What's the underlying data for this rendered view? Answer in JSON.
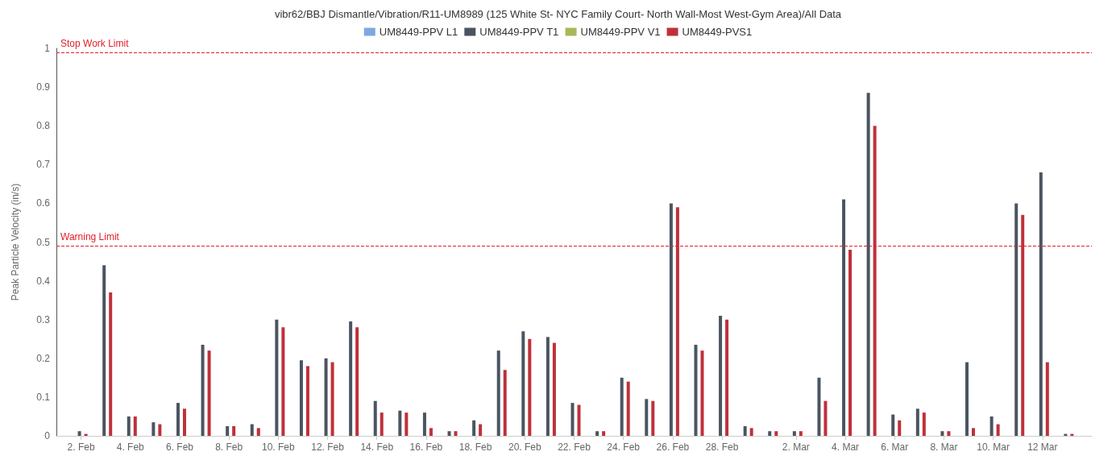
{
  "chart_data": {
    "type": "bar",
    "title": "vibr62/BBJ Dismantle/Vibration/R11-UM8989 (125 White St- NYC Family Court- North Wall-Most West-Gym Area)/All Data",
    "ylabel": "Peak Particle Velocity (in/s)",
    "x": [
      "--02-02",
      "--02-03",
      "--02-04",
      "--02-05",
      "--02-06",
      "--02-07",
      "--02-08",
      "--02-09",
      "--02-10",
      "--02-11",
      "--02-12",
      "--02-13",
      "--02-14",
      "--02-15",
      "--02-16",
      "--02-17",
      "--02-18",
      "--02-19",
      "--02-20",
      "--02-21",
      "--02-22",
      "--02-23",
      "--02-24",
      "--02-25",
      "--02-26",
      "--02-27",
      "--02-28",
      "--02-29",
      "--03-01",
      "--03-02",
      "--03-03",
      "--03-04",
      "--03-05",
      "--03-06",
      "--03-07",
      "--03-08",
      "--03-09",
      "--03-10",
      "--03-11",
      "--03-12",
      "--03-13"
    ],
    "series": [
      {
        "name": "UM8449-PPV L1",
        "color": "#7fa8e0",
        "values": [
          null,
          null,
          null,
          null,
          null,
          null,
          null,
          null,
          null,
          null,
          null,
          null,
          null,
          null,
          null,
          null,
          null,
          null,
          null,
          null,
          null,
          null,
          null,
          null,
          null,
          null,
          null,
          null,
          null,
          null,
          null,
          null,
          null,
          null,
          null,
          null,
          null,
          null,
          null,
          null,
          null
        ]
      },
      {
        "name": "UM8449-PPV T1",
        "color": "#4a5560",
        "values": [
          0.012,
          0.44,
          0.05,
          0.035,
          0.085,
          0.235,
          0.025,
          0.03,
          0.3,
          0.195,
          0.2,
          0.295,
          0.09,
          0.065,
          0.06,
          0.012,
          0.04,
          0.22,
          0.27,
          0.255,
          0.085,
          0.012,
          0.15,
          0.095,
          0.6,
          0.235,
          0.31,
          0.025,
          0.012,
          0.012,
          0.15,
          0.61,
          0.885,
          0.055,
          0.07,
          0.012,
          0.19,
          0.05,
          0.6,
          0.68,
          0.005
        ]
      },
      {
        "name": "UM8449-PPV V1",
        "color": "#a8b85a",
        "values": [
          null,
          null,
          null,
          null,
          null,
          null,
          null,
          null,
          null,
          null,
          null,
          null,
          null,
          null,
          null,
          null,
          null,
          null,
          null,
          null,
          null,
          null,
          null,
          null,
          null,
          null,
          null,
          null,
          null,
          null,
          null,
          null,
          null,
          null,
          null,
          null,
          null,
          null,
          null,
          null,
          null
        ]
      },
      {
        "name": "UM8449-PVS1",
        "color": "#c0303a",
        "values": [
          0.005,
          0.37,
          0.05,
          0.03,
          0.07,
          0.22,
          0.025,
          0.02,
          0.28,
          0.18,
          0.19,
          0.28,
          0.06,
          0.06,
          0.02,
          0.012,
          0.03,
          0.17,
          0.25,
          0.24,
          0.08,
          0.012,
          0.14,
          0.09,
          0.59,
          0.22,
          0.3,
          0.02,
          0.012,
          0.012,
          0.09,
          0.48,
          0.8,
          0.04,
          0.06,
          0.012,
          0.02,
          0.03,
          0.57,
          0.19,
          0.005
        ]
      }
    ],
    "xlim": [
      "--02-01",
      "--03-14"
    ],
    "xticks": [
      {
        "value": "--02-02",
        "label": "2. Feb"
      },
      {
        "value": "--02-04",
        "label": "4. Feb"
      },
      {
        "value": "--02-06",
        "label": "6. Feb"
      },
      {
        "value": "--02-08",
        "label": "8. Feb"
      },
      {
        "value": "--02-10",
        "label": "10. Feb"
      },
      {
        "value": "--02-12",
        "label": "12. Feb"
      },
      {
        "value": "--02-14",
        "label": "14. Feb"
      },
      {
        "value": "--02-16",
        "label": "16. Feb"
      },
      {
        "value": "--02-18",
        "label": "18. Feb"
      },
      {
        "value": "--02-20",
        "label": "20. Feb"
      },
      {
        "value": "--02-22",
        "label": "22. Feb"
      },
      {
        "value": "--02-24",
        "label": "24. Feb"
      },
      {
        "value": "--02-26",
        "label": "26. Feb"
      },
      {
        "value": "--02-28",
        "label": "28. Feb"
      },
      {
        "value": "--03-02",
        "label": "2. Mar"
      },
      {
        "value": "--03-04",
        "label": "4. Mar"
      },
      {
        "value": "--03-06",
        "label": "6. Mar"
      },
      {
        "value": "--03-08",
        "label": "8. Mar"
      },
      {
        "value": "--03-10",
        "label": "10. Mar"
      },
      {
        "value": "--03-12",
        "label": "12 Mar"
      }
    ],
    "ylim": [
      0,
      1
    ],
    "yticks": [
      0,
      0.1,
      0.2,
      0.3,
      0.4,
      0.5,
      0.6,
      0.7,
      0.8,
      0.9,
      1
    ],
    "ref_lines": [
      {
        "axis": "y",
        "value": 0.99,
        "label": "Stop Work Limit",
        "color": "#e0202a",
        "line_style": "dashed"
      },
      {
        "axis": "y",
        "value": 0.49,
        "label": "Warning Limit",
        "color": "#e0202a",
        "line_style": "dashed"
      }
    ],
    "legend": "top",
    "grid": false
  }
}
